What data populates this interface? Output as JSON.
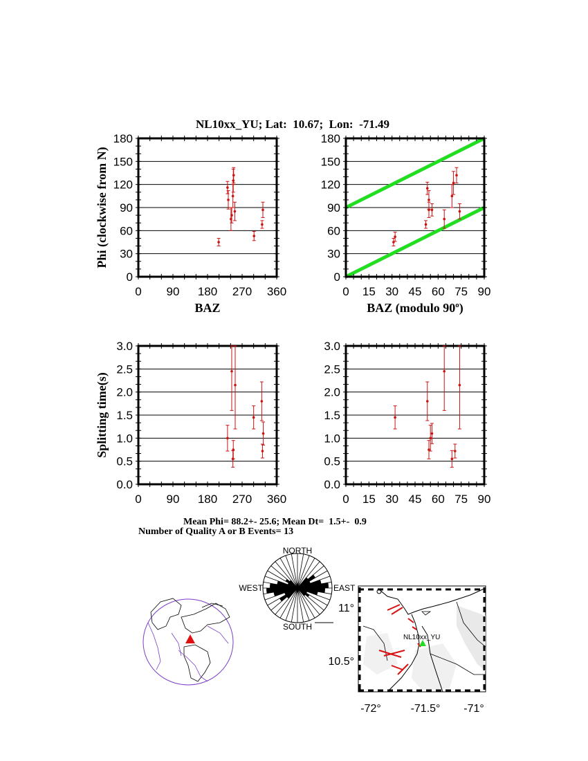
{
  "title": "NL10xx_YU; Lat:  10.67;  Lon:  -71.49",
  "colors": {
    "data": "#cc1111",
    "reference": "#22dd22",
    "axis": "#000000",
    "grid": "#000000"
  },
  "panels": {
    "phi_baz": {
      "xlabel": "BAZ",
      "ylabel": "Phi (clockwise from N)"
    },
    "phi_mod": {
      "xlabel": "BAZ (modulo 90",
      "xlabel_sup": "o",
      "xlabel_tail": ")"
    },
    "dt_baz": {
      "ylabel": "Splitting time(s)"
    }
  },
  "chart_data": [
    {
      "type": "scatter",
      "id": "phi_baz",
      "xlabel": "BAZ",
      "ylabel": "Phi (clockwise from N)",
      "xlim": [
        0,
        360
      ],
      "ylim": [
        0,
        180
      ],
      "xticks": [
        0,
        90,
        180,
        270,
        360
      ],
      "yticks": [
        0,
        30,
        60,
        90,
        120,
        150,
        180
      ],
      "grid": "horizontal",
      "points": [
        {
          "x": 209,
          "y": 45,
          "err": 5
        },
        {
          "x": 232,
          "y": 116,
          "err": 8
        },
        {
          "x": 234,
          "y": 100,
          "err": 12
        },
        {
          "x": 241,
          "y": 75,
          "err": 15
        },
        {
          "x": 243,
          "y": 80,
          "err": 10
        },
        {
          "x": 246,
          "y": 105,
          "err": 15
        },
        {
          "x": 247,
          "y": 125,
          "err": 15
        },
        {
          "x": 248,
          "y": 132,
          "err": 10
        },
        {
          "x": 251,
          "y": 85,
          "err": 12
        },
        {
          "x": 301,
          "y": 53,
          "err": 6
        },
        {
          "x": 322,
          "y": 68,
          "err": 5
        },
        {
          "x": 324,
          "y": 87,
          "err": 10
        }
      ]
    },
    {
      "type": "scatter",
      "id": "phi_mod",
      "xlabel": "BAZ (modulo 90o)",
      "xlim": [
        0,
        90
      ],
      "ylim": [
        0,
        180
      ],
      "xticks": [
        0,
        15,
        30,
        45,
        60,
        75,
        90
      ],
      "yticks": [
        0,
        30,
        60,
        90,
        120,
        150,
        180
      ],
      "grid": "horizontal",
      "reference_lines": [
        {
          "x": [
            0,
            90
          ],
          "y": [
            0,
            90
          ]
        },
        {
          "x": [
            0,
            90
          ],
          "y": [
            90,
            180
          ]
        }
      ],
      "points": [
        {
          "x": 31,
          "y": 45,
          "err": 5
        },
        {
          "x": 32,
          "y": 52,
          "err": 6
        },
        {
          "x": 52,
          "y": 68,
          "err": 5
        },
        {
          "x": 53,
          "y": 115,
          "err": 8
        },
        {
          "x": 54,
          "y": 100,
          "err": 12
        },
        {
          "x": 54,
          "y": 87,
          "err": 10
        },
        {
          "x": 56,
          "y": 87,
          "err": 8
        },
        {
          "x": 64,
          "y": 75,
          "err": 12
        },
        {
          "x": 69,
          "y": 105,
          "err": 15
        },
        {
          "x": 70,
          "y": 122,
          "err": 15
        },
        {
          "x": 72,
          "y": 132,
          "err": 10
        },
        {
          "x": 74,
          "y": 85,
          "err": 10
        }
      ]
    },
    {
      "type": "scatter",
      "id": "dt_baz",
      "ylabel": "Splitting time(s)",
      "xlim": [
        0,
        360
      ],
      "ylim": [
        0,
        3
      ],
      "xticks": [
        0,
        90,
        180,
        270,
        360
      ],
      "yticks": [
        "0.0",
        "0.5",
        "1.0",
        "1.5",
        "2.0",
        "2.5",
        "3.0"
      ],
      "grid": "horizontal",
      "points": [
        {
          "x": 232,
          "y": 1.0,
          "err": 0.28
        },
        {
          "x": 243,
          "y": 2.45,
          "err": 0.85
        },
        {
          "x": 246,
          "y": 0.55,
          "err": 0.18
        },
        {
          "x": 247,
          "y": 0.75,
          "err": 0.2
        },
        {
          "x": 252,
          "y": 2.15,
          "err": 0.95
        },
        {
          "x": 300,
          "y": 1.45,
          "err": 0.25
        },
        {
          "x": 321,
          "y": 1.8,
          "err": 0.42
        },
        {
          "x": 323,
          "y": 0.72,
          "err": 0.15
        },
        {
          "x": 325,
          "y": 1.1,
          "err": 0.25
        }
      ]
    },
    {
      "type": "scatter",
      "id": "dt_mod",
      "xlim": [
        0,
        90
      ],
      "ylim": [
        0,
        3
      ],
      "xticks": [
        0,
        15,
        30,
        45,
        60,
        75,
        90
      ],
      "yticks": [
        "0.0",
        "0.5",
        "1.0",
        "1.5",
        "2.0",
        "2.5",
        "3.0"
      ],
      "grid": "horizontal",
      "points": [
        {
          "x": 32,
          "y": 1.45,
          "err": 0.25
        },
        {
          "x": 53,
          "y": 1.8,
          "err": 0.42
        },
        {
          "x": 54,
          "y": 0.75,
          "err": 0.2
        },
        {
          "x": 55,
          "y": 1.0,
          "err": 0.28
        },
        {
          "x": 56,
          "y": 1.1,
          "err": 0.22
        },
        {
          "x": 64,
          "y": 2.45,
          "err": 0.85
        },
        {
          "x": 69,
          "y": 0.55,
          "err": 0.18
        },
        {
          "x": 71,
          "y": 0.72,
          "err": 0.15
        },
        {
          "x": 74,
          "y": 2.15,
          "err": 0.95
        }
      ]
    }
  ],
  "summary": {
    "line1": "Mean Phi= 88.2+- 25.6; Mean Dt=  1.5+-  0.9",
    "line2": "Number of Quality A or B Events= 13"
  },
  "rose": {
    "north": "NORTH",
    "south": "SOUTH",
    "east": "EAST",
    "west": "WEST"
  },
  "map": {
    "station_label": "NL10xx_YU",
    "lat_labels": [
      "11°",
      "10.5°"
    ],
    "lon_labels": [
      "-72°",
      "-71.5°",
      "-71°"
    ]
  }
}
